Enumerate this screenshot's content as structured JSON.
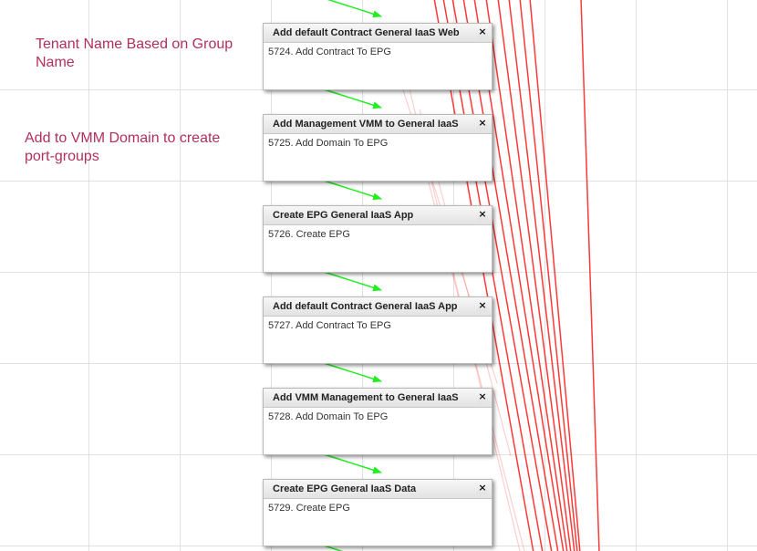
{
  "notes": {
    "tenant": "Tenant Name Based on Group Name",
    "vmm": "Add to VMM Domain to create port-groups"
  },
  "tasks": [
    {
      "title": "Add default Contract General IaaS Web",
      "detail": "5724. Add Contract To EPG"
    },
    {
      "title": "Add Management VMM to General IaaS",
      "detail": "5725. Add Domain To EPG"
    },
    {
      "title": "Create EPG General IaaS App",
      "detail": "5726. Create EPG"
    },
    {
      "title": "Add default Contract General IaaS App",
      "detail": "5727. Add Contract To EPG"
    },
    {
      "title": "Add VMM Management to General IaaS",
      "detail": "5728. Add Domain To EPG"
    },
    {
      "title": "Create EPG General IaaS Data",
      "detail": "5729. Create EPG"
    }
  ],
  "close_glyph": "×",
  "colors": {
    "success_link": "#22ee22",
    "failure_link": "#ff2222",
    "note_text": "#b0305a",
    "grid": "#e2e2e2"
  }
}
